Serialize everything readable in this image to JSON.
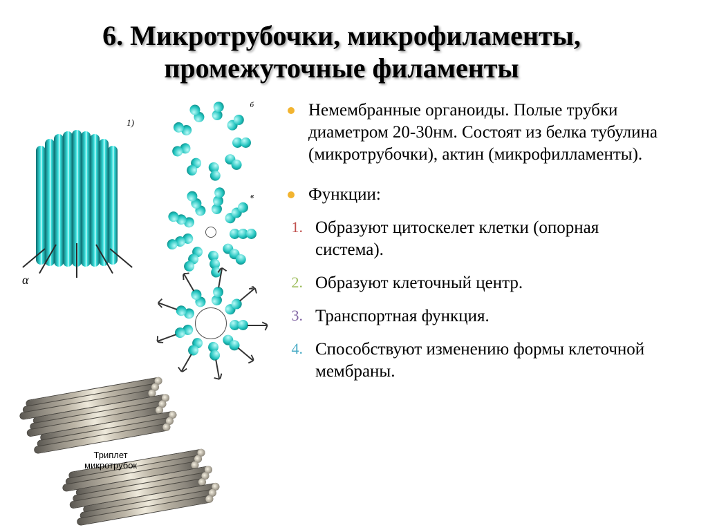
{
  "title": "6. Микротрубочки, микрофиламенты, промежуточные филаменты",
  "bullets": {
    "p1": "Немембранные органоиды. Полые трубки диаметром 20-30нм. Состоят из белка  тубулина (микротрубочки), актин (микрофилламенты).",
    "p2": "Функции:"
  },
  "list": {
    "n1": "1.",
    "n2": "2.",
    "n3": "3.",
    "n4": "4.",
    "i1": "Образуют цитоскелет клетки (опорная система).",
    "i2": "Образуют клеточный центр.",
    "i3": "Транспортная функция.",
    "i4": "Способствуют изменению формы клеточной мембраны."
  },
  "figure": {
    "triplet_label": "Триплет\nмикротрубок",
    "alpha": "α",
    "ring_letters": {
      "r1": "б",
      "r2": "в",
      "r3": "г"
    },
    "ring_num": "1)"
  },
  "colors": {
    "bullet1": "#f2b430",
    "bullet2": "#f2b430",
    "num1": "#c0504d",
    "num2": "#9bbb59",
    "num3": "#8064a2",
    "num4": "#4bacc6"
  }
}
